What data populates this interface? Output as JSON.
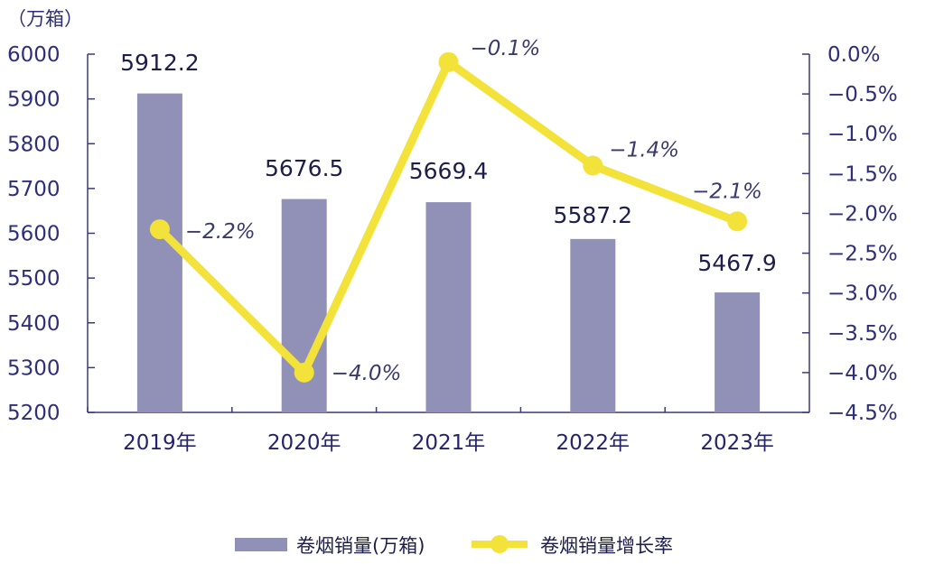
{
  "chart_data": {
    "type": "bar+line",
    "categories": [
      "2019年",
      "2020年",
      "2021年",
      "2022年",
      "2023年"
    ],
    "series": [
      {
        "name": "卷烟销量(万箱)",
        "type": "bar",
        "axis": "left",
        "values": [
          5912.2,
          5676.5,
          5669.4,
          5587.2,
          5467.9
        ],
        "labels": [
          "5912.2",
          "5676.5",
          "5669.4",
          "5587.2",
          "5467.9"
        ],
        "color": "#9191b8"
      },
      {
        "name": "卷烟销量增长率",
        "type": "line",
        "axis": "right",
        "values": [
          -2.2,
          -4.0,
          -0.1,
          -1.4,
          -2.1
        ],
        "labels": [
          "−2.2%",
          "−4.0%",
          "−0.1%",
          "−1.4%",
          "−2.1%"
        ],
        "color": "#f2e23a"
      }
    ],
    "y_left": {
      "unit_label": "（万箱）",
      "ylim": [
        5200,
        6000
      ],
      "ticks": [
        "6000",
        "5900",
        "5800",
        "5700",
        "5600",
        "5500",
        "5400",
        "5300",
        "5200"
      ]
    },
    "y_right": {
      "ylim": [
        -4.5,
        0.0
      ],
      "ticks": [
        "0.0%",
        "−0.5%",
        "−1.0%",
        "−1.5%",
        "−2.0%",
        "−2.5%",
        "−3.0%",
        "−3.5%",
        "−4.0%",
        "−4.5%"
      ]
    },
    "grid": false,
    "legend_position": "bottom-center"
  }
}
